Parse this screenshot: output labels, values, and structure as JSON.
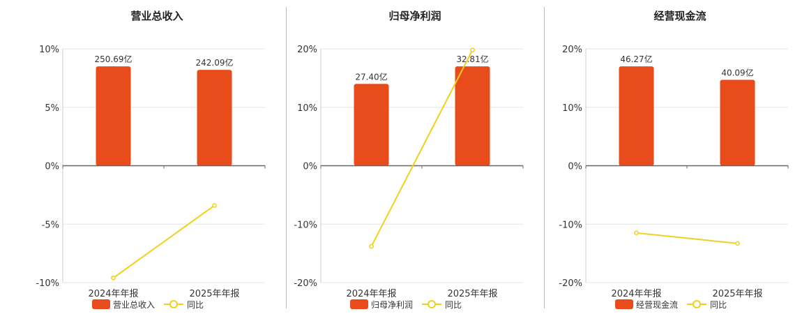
{
  "colors": {
    "bar": "#E84C1A",
    "line": "#F2D01A",
    "grid": "#e6e6e6",
    "axis": "#666666"
  },
  "legend": {
    "yoy_label": "同比"
  },
  "chart_data": [
    {
      "type": "bar",
      "title": "营业总收入",
      "categories": [
        "2024年年报",
        "2025年年报"
      ],
      "bar_values": [
        8.5,
        8.2
      ],
      "bar_labels": [
        "250.69亿",
        "242.09亿"
      ],
      "line_values": [
        -9.6,
        -3.4
      ],
      "ylim": [
        -10,
        10
      ],
      "yticks": [
        10,
        5,
        0,
        -5,
        -10
      ],
      "ytick_labels": [
        "10%",
        "5%",
        "0%",
        "-5%",
        "-10%"
      ],
      "legend": [
        "营业总收入",
        "同比"
      ]
    },
    {
      "type": "bar",
      "title": "归母净利润",
      "categories": [
        "2024年年报",
        "2025年年报"
      ],
      "bar_values": [
        14.0,
        17.0
      ],
      "bar_labels": [
        "27.40亿",
        "32.81亿"
      ],
      "line_values": [
        -13.8,
        19.8
      ],
      "ylim": [
        -20,
        20
      ],
      "yticks": [
        20,
        10,
        0,
        -10,
        -20
      ],
      "ytick_labels": [
        "20%",
        "10%",
        "0%",
        "-10%",
        "-20%"
      ],
      "legend": [
        "归母净利润",
        "同比"
      ]
    },
    {
      "type": "bar",
      "title": "经营现金流",
      "categories": [
        "2024年年报",
        "2025年年报"
      ],
      "bar_values": [
        17.0,
        14.7
      ],
      "bar_labels": [
        "46.27亿",
        "40.09亿"
      ],
      "line_values": [
        -11.5,
        -13.3
      ],
      "ylim": [
        -20,
        20
      ],
      "yticks": [
        20,
        10,
        0,
        -10,
        -20
      ],
      "ytick_labels": [
        "20%",
        "10%",
        "0%",
        "-10%",
        "-20%"
      ],
      "legend": [
        "经营现金流",
        "同比"
      ]
    }
  ]
}
